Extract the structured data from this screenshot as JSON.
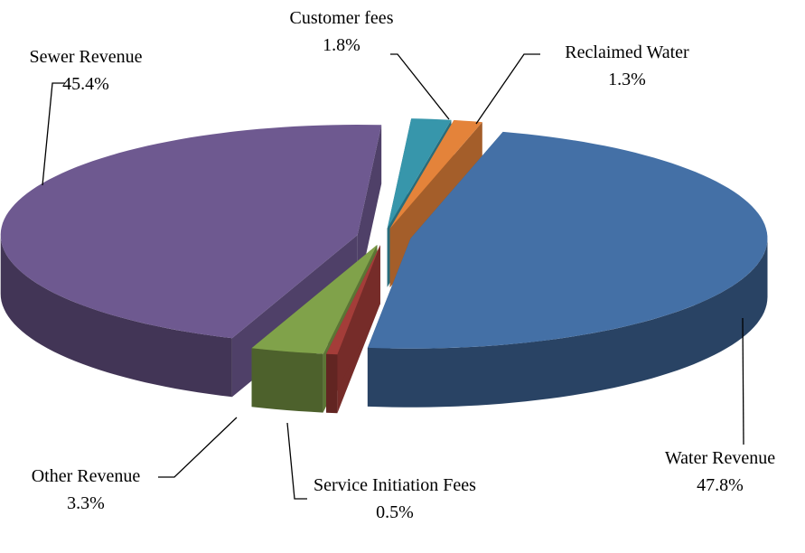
{
  "chart_data": {
    "type": "pie",
    "categories": [
      "Water Revenue",
      "Service Initiation Fees",
      "Other Revenue",
      "Sewer Revenue",
      "Customer fees",
      "Reclaimed Water"
    ],
    "values": [
      47.8,
      0.5,
      3.3,
      45.4,
      1.8,
      1.3
    ],
    "value_labels": [
      "47.8%",
      "0.5%",
      "3.3%",
      "45.4%",
      "1.8%",
      "1.3%"
    ],
    "colors": [
      "#4470a6",
      "#a43d39",
      "#80a24a",
      "#6e5990",
      "#3796ab",
      "#e4833a"
    ]
  }
}
